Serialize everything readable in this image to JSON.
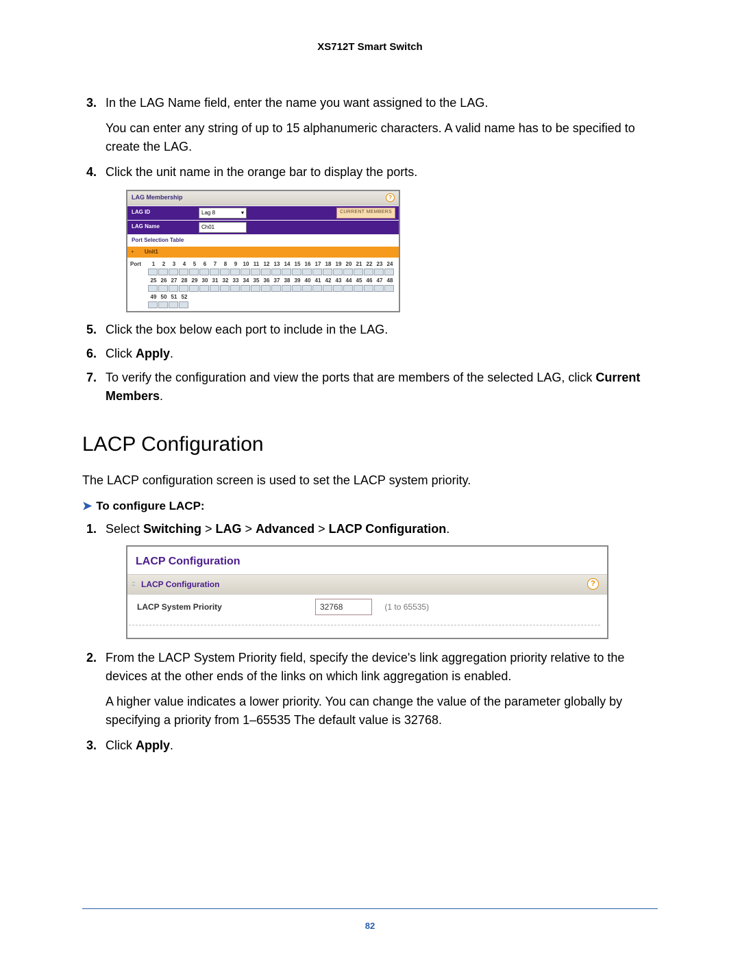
{
  "header": {
    "product": "XS712T Smart Switch"
  },
  "steps_a": {
    "s3": "In the LAG Name field, enter the name you want assigned to the LAG.",
    "s3_sub": "You can enter any string of up to 15 alphanumeric characters. A valid name has to be specified to create the LAG.",
    "s4": "Click the unit name in the orange bar to display the ports.",
    "s5": "Click the box below each port to include in the LAG.",
    "s6_pre": "Click ",
    "s6_b": "Apply",
    "s6_post": ".",
    "s7_pre": "To verify the configuration and view the ports that are members of the selected LAG, click ",
    "s7_b": "Current Members",
    "s7_post": "."
  },
  "lag_fig": {
    "title": "LAG Membership",
    "row1_label": "LAG ID",
    "row1_value": "Lag 8",
    "row2_label": "LAG Name",
    "row2_value": "Ch01",
    "btn": "CURRENT MEMBERS",
    "pst": "Port Selection Table",
    "unit_star": "•",
    "unit": "Unit1",
    "port_label": "Port",
    "ports_r1": [
      "1",
      "2",
      "3",
      "4",
      "5",
      "6",
      "7",
      "8",
      "9",
      "10",
      "11",
      "12",
      "13",
      "14",
      "15",
      "16",
      "17",
      "18",
      "19",
      "20",
      "21",
      "22",
      "23",
      "24"
    ],
    "ports_r2": [
      "25",
      "26",
      "27",
      "28",
      "29",
      "30",
      "31",
      "32",
      "33",
      "34",
      "35",
      "36",
      "37",
      "38",
      "39",
      "40",
      "41",
      "42",
      "43",
      "44",
      "45",
      "46",
      "47",
      "48"
    ],
    "ports_r3": [
      "49",
      "50",
      "51",
      "52"
    ]
  },
  "section_h2": "LACP Configuration",
  "section_p": "The LACP configuration screen is used to set the LACP system priority.",
  "proc_heading": "To configure LACP:",
  "steps_b": {
    "s1_pre": "Select ",
    "s1_b1": "Switching",
    "s1_gt": " > ",
    "s1_b2": "LAG",
    "s1_b3": "Advanced",
    "s1_b4": "LACP Configuration",
    "s1_post": ".",
    "s2": "From the LACP System Priority field, specify the device's link aggregation priority relative to the devices at the other ends of the links on which link aggregation is enabled.",
    "s2_sub": "A higher value indicates a lower priority. You can change the value of the parameter globally by specifying a priority from 1–65535 The default value is 32768.",
    "s3_pre": "Click ",
    "s3_b": "Apply",
    "s3_post": "."
  },
  "lacp_fig": {
    "title": "LACP Configuration",
    "sub": "LACP Configuration",
    "label": "LACP System Priority",
    "value": "32768",
    "range": "(1 to 65535)"
  },
  "page_num": "82"
}
